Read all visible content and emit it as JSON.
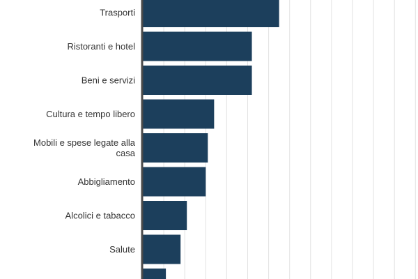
{
  "chart_data": {
    "type": "bar",
    "orientation": "horizontal",
    "categories": [
      "Trasporti",
      "Ristoranti e hotel",
      "Beni e servizi",
      "Cultura e tempo libero",
      "Mobili e spese legate alla casa",
      "Abbigliamento",
      "Alcolici e tabacco",
      "Salute",
      ""
    ],
    "values": [
      6.5,
      5.2,
      5.2,
      3.4,
      3.1,
      3.0,
      2.1,
      1.8,
      1.1
    ],
    "xlim": [
      0,
      13
    ],
    "grid": true,
    "title": "",
    "xlabel": "",
    "ylabel": "",
    "colors": {
      "bar": "#1c3f5c",
      "grid": "#e2e2e2",
      "axis": "#4a4a4a"
    }
  }
}
